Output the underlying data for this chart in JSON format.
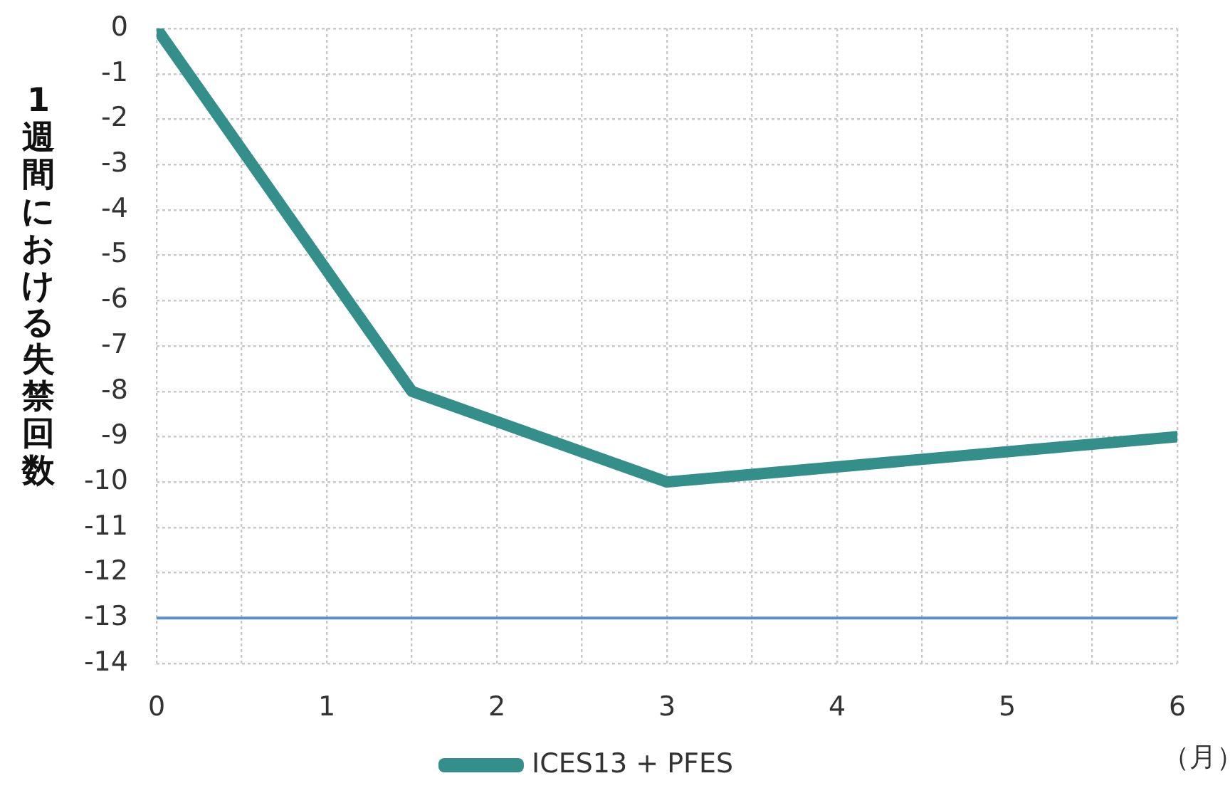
{
  "chart_data": {
    "type": "line",
    "ylabel": "1週間における失禁回数",
    "xlabel": "（月）",
    "x": [
      0,
      1.5,
      3,
      6
    ],
    "series": [
      {
        "name": "ICES13 + PFES",
        "color": "#348f8b",
        "values": [
          0,
          -8,
          -10,
          -9
        ]
      }
    ],
    "xlim": [
      0,
      6
    ],
    "xticks": [
      0,
      {
        "value": 0.5,
        "label": null
      },
      1,
      {
        "value": 1.5,
        "label": null
      },
      2,
      {
        "value": 2.5,
        "label": null
      },
      3,
      {
        "value": 3.5,
        "label": null
      },
      4,
      {
        "value": 4.5,
        "label": null
      },
      5,
      {
        "value": 5.5,
        "label": null
      },
      6
    ],
    "ylim": [
      -14,
      0
    ],
    "yticks": [
      -14,
      -13,
      -12,
      -11,
      -10,
      -9,
      -8,
      -7,
      -6,
      -5,
      -4,
      -3,
      -2,
      -1,
      0
    ],
    "grid": true,
    "legend": "bottom",
    "marker": "none",
    "line_style": "solid",
    "ref_lines": [
      {
        "axis": "y",
        "value": -13,
        "color": "#5b8fc7"
      }
    ]
  }
}
